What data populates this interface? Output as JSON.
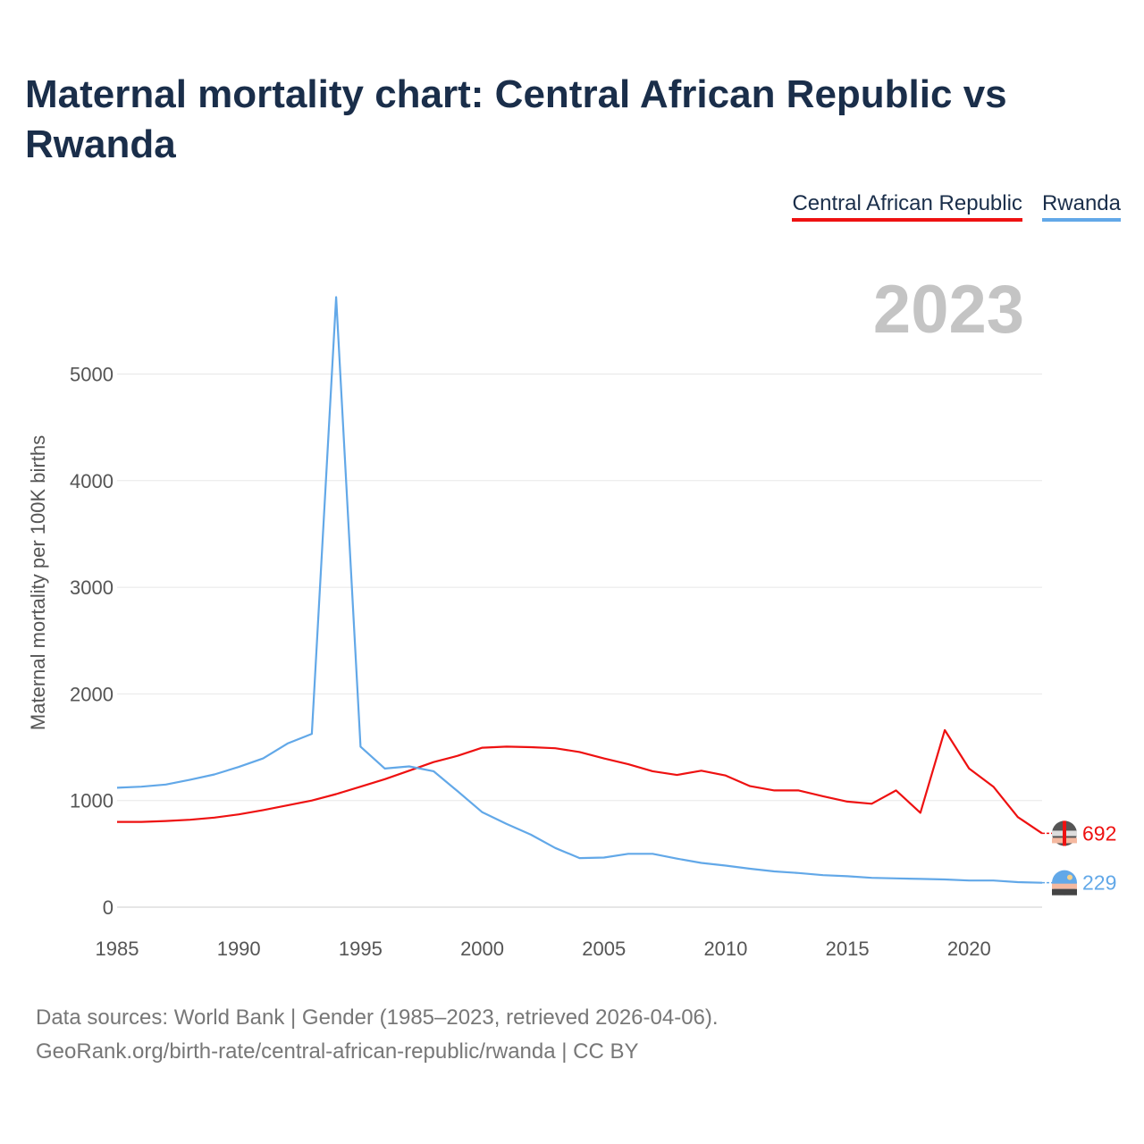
{
  "title": "Maternal mortality chart: Central African Republic vs Rwanda",
  "legend": [
    {
      "name": "Central African Republic",
      "color": "#ee1111"
    },
    {
      "name": "Rwanda",
      "color": "#62a8e8"
    }
  ],
  "year_watermark": "2023",
  "source": {
    "line1": "Data sources: World Bank | Gender (1985–2023, retrieved 2026-04-06).",
    "line2": "GeoRank.org/birth-rate/central-african-republic/rwanda | CC BY"
  },
  "chart_data": {
    "type": "line",
    "title": "Maternal mortality chart: Central African Republic vs Rwanda",
    "xlabel": "",
    "ylabel": "Maternal mortality per 100K births",
    "xlim": [
      1985,
      2023
    ],
    "ylim": [
      0,
      5800
    ],
    "x_ticks": [
      1985,
      1990,
      1995,
      2000,
      2005,
      2010,
      2015,
      2020
    ],
    "y_ticks": [
      0,
      1000,
      2000,
      3000,
      4000,
      5000
    ],
    "grid": true,
    "x": [
      1985,
      1986,
      1987,
      1988,
      1989,
      1990,
      1991,
      1992,
      1993,
      1994,
      1995,
      1996,
      1997,
      1998,
      1999,
      2000,
      2001,
      2002,
      2003,
      2004,
      2005,
      2006,
      2007,
      2008,
      2009,
      2010,
      2011,
      2012,
      2013,
      2014,
      2015,
      2016,
      2017,
      2018,
      2019,
      2020,
      2021,
      2022,
      2023
    ],
    "series": [
      {
        "name": "Central African Republic",
        "color": "#ee1111",
        "end_label": "692",
        "values": [
          800,
          800,
          808,
          820,
          840,
          870,
          910,
          955,
          1000,
          1060,
          1130,
          1200,
          1280,
          1360,
          1420,
          1495,
          1505,
          1500,
          1490,
          1455,
          1395,
          1340,
          1275,
          1240,
          1280,
          1235,
          1135,
          1095,
          1095,
          1040,
          990,
          970,
          1095,
          885,
          1660,
          1300,
          1130,
          845,
          692
        ]
      },
      {
        "name": "Rwanda",
        "color": "#62a8e8",
        "end_label": "229",
        "values": [
          1120,
          1130,
          1150,
          1195,
          1245,
          1315,
          1395,
          1535,
          1625,
          5720,
          1505,
          1300,
          1320,
          1275,
          1085,
          890,
          780,
          680,
          555,
          460,
          465,
          500,
          500,
          455,
          415,
          390,
          360,
          335,
          320,
          300,
          290,
          275,
          270,
          265,
          260,
          250,
          250,
          235,
          229
        ]
      }
    ]
  }
}
